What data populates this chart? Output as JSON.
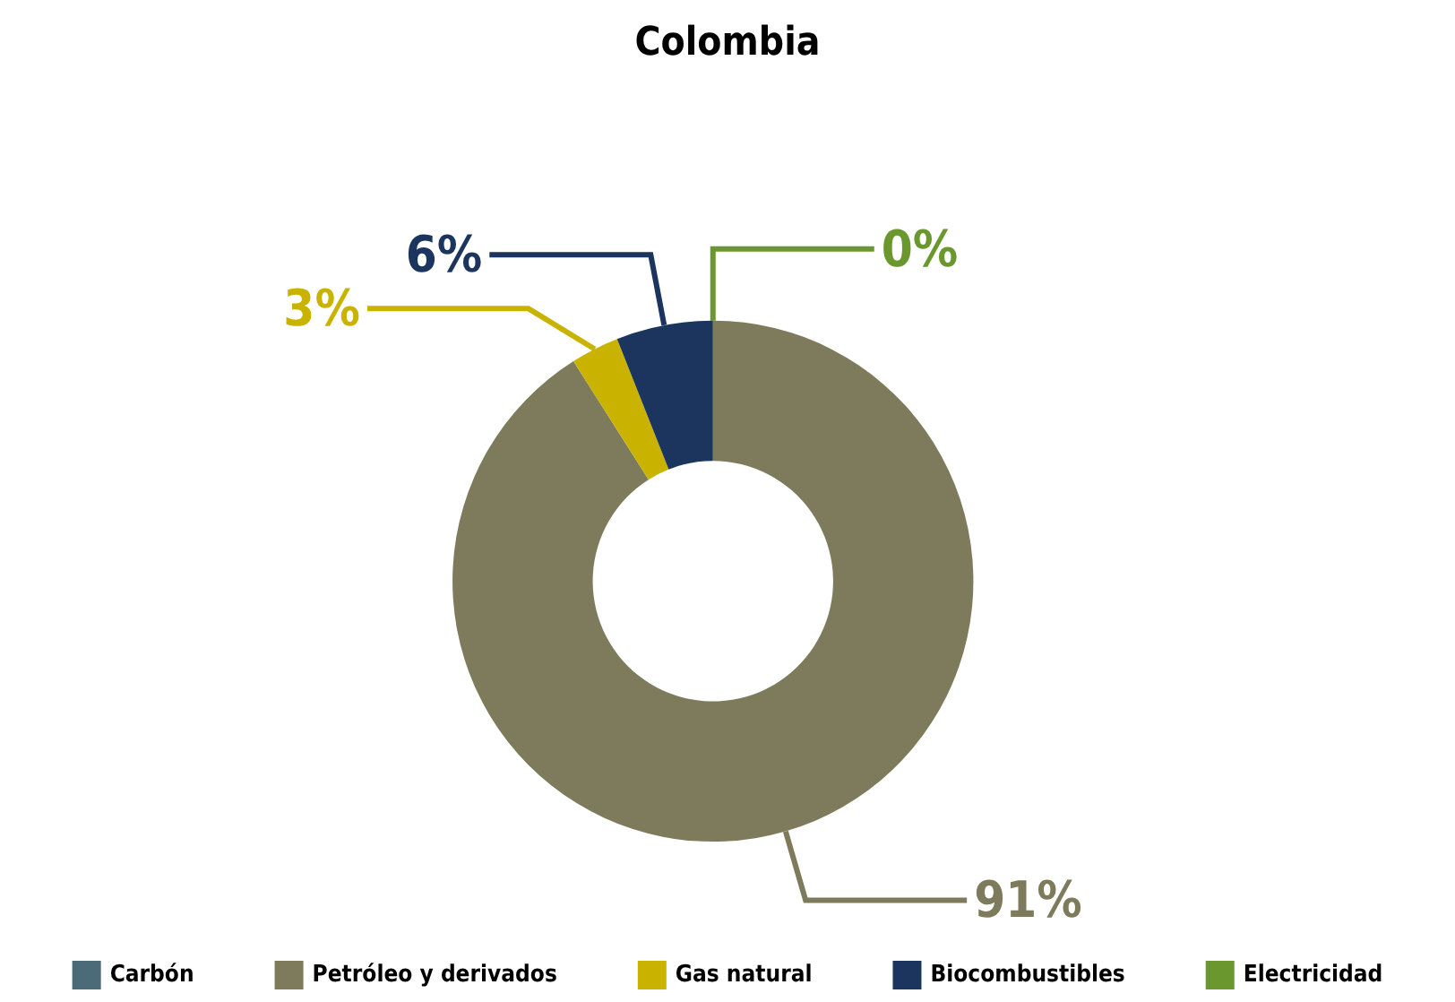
{
  "chart_data": {
    "type": "donut",
    "title": "Colombia",
    "categories": [
      "Carbón",
      "Petróleo y derivados",
      "Gas natural",
      "Biocombustibles",
      "Electricidad"
    ],
    "values": [
      0,
      91,
      3,
      6,
      0
    ],
    "value_labels": [
      null,
      "91%",
      "3%",
      "6%",
      "0%"
    ],
    "colors": [
      "#4b6b78",
      "#7e7b5c",
      "#c9b300",
      "#1b355f",
      "#6a982f"
    ],
    "legend": "bottom"
  }
}
